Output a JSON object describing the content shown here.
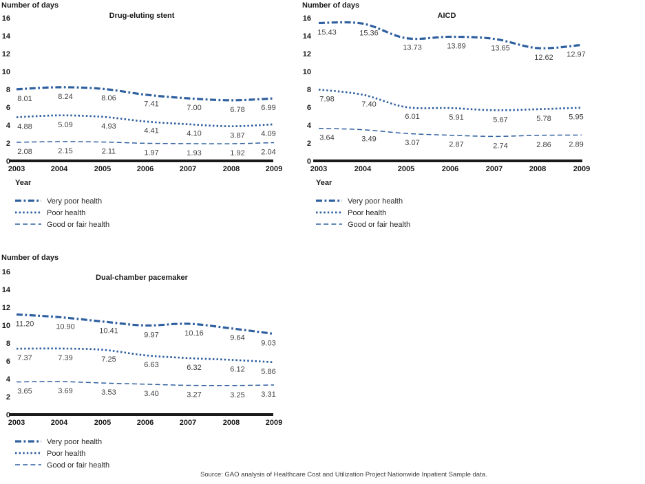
{
  "page": {
    "source_note": "Source: GAO analysis of Healthcare Cost and Utilization Project Nationwide Inpatient Sample data."
  },
  "colors": {
    "line_blue": "#2E5F9F",
    "axis_black": "#1a1a1a",
    "data_label_gray": "#3f3f3f"
  },
  "chart_data": [
    {
      "type": "line",
      "title": "Drug-eluting stent",
      "ylabel": "Number of days",
      "xlabel": "Year",
      "ylim": [
        0,
        16
      ],
      "ytick_step": 2,
      "grid": false,
      "legend_position": "below",
      "categories": [
        "2003",
        "2004",
        "2005",
        "2006",
        "2007",
        "2008",
        "2009"
      ],
      "series": [
        {
          "name": "Very poor health",
          "style": "dash-dot",
          "values": [
            8.01,
            8.24,
            8.06,
            7.41,
            7.0,
            6.78,
            6.99
          ]
        },
        {
          "name": "Poor health",
          "style": "dotted",
          "values": [
            4.88,
            5.09,
            4.93,
            4.41,
            4.1,
            3.87,
            4.09
          ]
        },
        {
          "name": "Good or fair health",
          "style": "dashed",
          "values": [
            2.08,
            2.15,
            2.11,
            1.97,
            1.93,
            1.92,
            2.04
          ]
        }
      ]
    },
    {
      "type": "line",
      "title": "AICD",
      "ylabel": "Number of days",
      "xlabel": "Year",
      "ylim": [
        0,
        16
      ],
      "ytick_step": 2,
      "grid": false,
      "legend_position": "below",
      "categories": [
        "2003",
        "2004",
        "2005",
        "2006",
        "2007",
        "2008",
        "2009"
      ],
      "series": [
        {
          "name": "Very poor health",
          "style": "dash-dot",
          "values": [
            15.43,
            15.36,
            13.73,
            13.89,
            13.65,
            12.62,
            12.97
          ]
        },
        {
          "name": "Poor health",
          "style": "dotted",
          "values": [
            7.98,
            7.4,
            6.01,
            5.91,
            5.67,
            5.78,
            5.95
          ]
        },
        {
          "name": "Good or fair health",
          "style": "dashed",
          "values": [
            3.64,
            3.49,
            3.07,
            2.87,
            2.74,
            2.86,
            2.89
          ]
        }
      ]
    },
    {
      "type": "line",
      "title": "Dual-chamber pacemaker",
      "ylabel": "Number of days",
      "xlabel": "",
      "ylim": [
        0,
        16
      ],
      "ytick_step": 2,
      "grid": false,
      "legend_position": "below",
      "categories": [
        "2003",
        "2004",
        "2005",
        "2006",
        "2007",
        "2008",
        "2009"
      ],
      "series": [
        {
          "name": "Very poor health",
          "style": "dash-dot",
          "values": [
            11.2,
            10.9,
            10.41,
            9.97,
            10.16,
            9.64,
            9.03
          ]
        },
        {
          "name": "Poor health",
          "style": "dotted",
          "values": [
            7.37,
            7.39,
            7.25,
            6.63,
            6.32,
            6.12,
            5.86
          ]
        },
        {
          "name": "Good or fair health",
          "style": "dashed",
          "values": [
            3.65,
            3.69,
            3.53,
            3.4,
            3.27,
            3.25,
            3.31
          ]
        }
      ]
    }
  ]
}
